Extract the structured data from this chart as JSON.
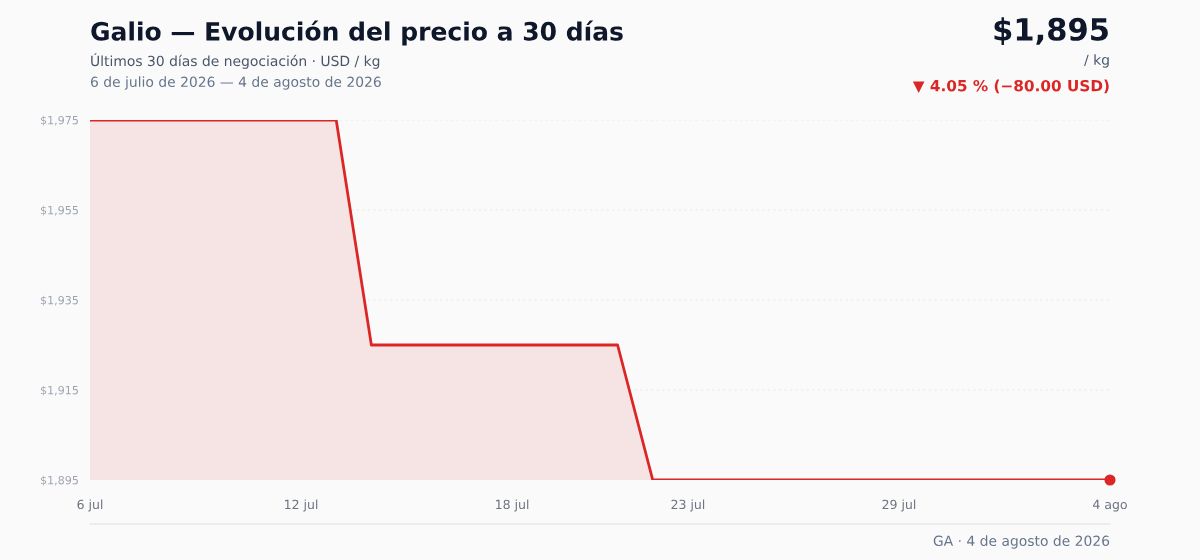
{
  "chart_data": {
    "type": "area",
    "title": "Galio — Evolución del precio a 30 días",
    "subtitle": "Últimos 30 días de negociación · USD / kg",
    "annotations": [
      "6 de julio de 2026 — 4 de agosto de 2026",
      "$1,895",
      "/ kg",
      "▼ 4.05 % (−80.00 USD)",
      "GA · 4 de agosto de 2026"
    ],
    "x": [
      "2026-07-06",
      "2026-07-07",
      "2026-07-08",
      "2026-07-09",
      "2026-07-10",
      "2026-07-11",
      "2026-07-12",
      "2026-07-13",
      "2026-07-14",
      "2026-07-15",
      "2026-07-16",
      "2026-07-17",
      "2026-07-18",
      "2026-07-19",
      "2026-07-20",
      "2026-07-21",
      "2026-07-22",
      "2026-07-23",
      "2026-07-24",
      "2026-07-25",
      "2026-07-26",
      "2026-07-27",
      "2026-07-28",
      "2026-07-29",
      "2026-07-30",
      "2026-07-31",
      "2026-08-01",
      "2026-08-02",
      "2026-08-03",
      "2026-08-04"
    ],
    "series": [
      {
        "color": "#dc2626",
        "values": [
          1975,
          1975,
          1975,
          1975,
          1975,
          1975,
          1975,
          1975,
          1925,
          1925,
          1925,
          1925,
          1925,
          1925,
          1925,
          1925,
          1895,
          1895,
          1895,
          1895,
          1895,
          1895,
          1895,
          1895,
          1895,
          1895,
          1895,
          1895,
          1895,
          1895
        ]
      }
    ],
    "xlim": [
      "2026-07-06",
      "2026-08-04"
    ],
    "xticks": [
      {
        "value": "2026-07-06",
        "label": "6 jul"
      },
      {
        "value": "2026-07-12",
        "label": "12 jul"
      },
      {
        "value": "2026-07-18",
        "label": "18 jul"
      },
      {
        "value": "2026-07-23",
        "label": "23 jul"
      },
      {
        "value": "2026-07-29",
        "label": "29 jul"
      },
      {
        "value": "2026-08-04",
        "label": "4 ago"
      }
    ],
    "ylim": [
      1895,
      1975
    ],
    "yticks": [
      {
        "value": 1895,
        "label": "$1,895"
      },
      {
        "value": 1915,
        "label": "$1,915"
      },
      {
        "value": 1935,
        "label": "$1,935"
      },
      {
        "value": 1955,
        "label": "$1,955"
      },
      {
        "value": 1975,
        "label": "$1,975"
      }
    ],
    "grid": "y",
    "legend": false
  }
}
